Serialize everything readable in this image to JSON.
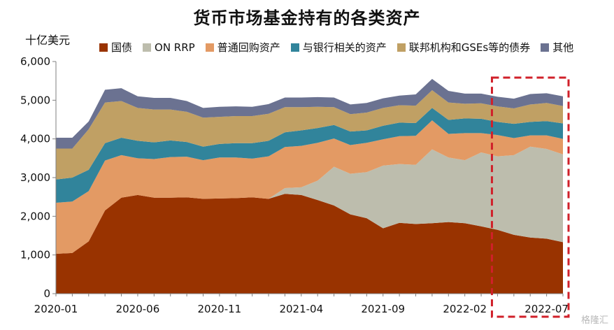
{
  "chart_data": {
    "type": "area",
    "title": "货币市场基金持有的各类资产",
    "unit_label": "十亿美元",
    "ylim": [
      0,
      6000
    ],
    "yticks": [
      0,
      1000,
      2000,
      3000,
      4000,
      5000,
      6000
    ],
    "ytick_labels": [
      "0",
      "1,000",
      "2,000",
      "3,000",
      "4,000",
      "5,000",
      "6,000"
    ],
    "x": [
      "2020-01",
      "2020-02",
      "2020-03",
      "2020-04",
      "2020-05",
      "2020-06",
      "2020-07",
      "2020-08",
      "2020-09",
      "2020-10",
      "2020-11",
      "2020-12",
      "2021-01",
      "2021-02",
      "2021-03",
      "2021-04",
      "2021-05",
      "2021-06",
      "2021-07",
      "2021-08",
      "2021-09",
      "2021-10",
      "2021-11",
      "2021-12",
      "2022-01",
      "2022-02",
      "2022-03",
      "2022-04",
      "2022-05",
      "2022-06",
      "2022-07",
      "2022-08"
    ],
    "xtick_labels": [
      "2020-01",
      "2020-06",
      "2020-11",
      "2021-04",
      "2021-09",
      "2022-02",
      "2022-07"
    ],
    "series": [
      {
        "name": "国债",
        "color": "#993300",
        "values": [
          1030,
          1050,
          1350,
          2150,
          2480,
          2550,
          2480,
          2480,
          2490,
          2450,
          2460,
          2470,
          2490,
          2450,
          2580,
          2550,
          2420,
          2280,
          2050,
          1950,
          1690,
          1830,
          1800,
          1820,
          1850,
          1820,
          1740,
          1650,
          1520,
          1450,
          1420,
          1330
        ]
      },
      {
        "name": "ON RRP",
        "color": "#bdbdad",
        "values": [
          0,
          0,
          0,
          0,
          0,
          0,
          0,
          0,
          0,
          0,
          0,
          0,
          0,
          0,
          150,
          200,
          500,
          1000,
          1050,
          1190,
          1620,
          1520,
          1530,
          1910,
          1670,
          1630,
          1910,
          1900,
          2060,
          2350,
          2320,
          2270
        ]
      },
      {
        "name": "普通回购资产",
        "color": "#e39a64",
        "values": [
          1320,
          1330,
          1300,
          1290,
          1100,
          950,
          1000,
          1050,
          1050,
          1000,
          1060,
          1050,
          1000,
          1100,
          1060,
          1070,
          980,
          730,
          740,
          760,
          680,
          720,
          750,
          750,
          610,
          700,
          500,
          550,
          440,
          290,
          350,
          400
        ]
      },
      {
        "name": "与银行相关的资产",
        "color": "#31849b",
        "values": [
          600,
          620,
          550,
          450,
          450,
          450,
          430,
          430,
          380,
          350,
          350,
          370,
          400,
          400,
          380,
          400,
          380,
          350,
          350,
          320,
          350,
          350,
          330,
          320,
          360,
          380,
          370,
          340,
          370,
          350,
          370,
          400
        ]
      },
      {
        "name": "联邦机构和GSEs等的债券",
        "color": "#c0a064",
        "values": [
          800,
          750,
          1050,
          1050,
          950,
          850,
          850,
          800,
          780,
          750,
          700,
          700,
          700,
          700,
          650,
          600,
          550,
          460,
          450,
          460,
          460,
          450,
          450,
          460,
          450,
          380,
          400,
          400,
          400,
          450,
          470,
          450
        ]
      },
      {
        "name": "其他",
        "color": "#6b7291",
        "values": [
          280,
          280,
          200,
          330,
          330,
          300,
          300,
          300,
          280,
          250,
          260,
          250,
          240,
          250,
          250,
          250,
          250,
          250,
          250,
          250,
          250,
          250,
          290,
          290,
          300,
          260,
          250,
          250,
          250,
          270,
          250,
          250
        ]
      }
    ],
    "legend_position": "top",
    "grid": false,
    "highlight_box": {
      "x_start": "2022-04",
      "x_end": "2022-08",
      "color": "#d0202a",
      "style": "dashed"
    }
  },
  "watermark": "格隆汇"
}
